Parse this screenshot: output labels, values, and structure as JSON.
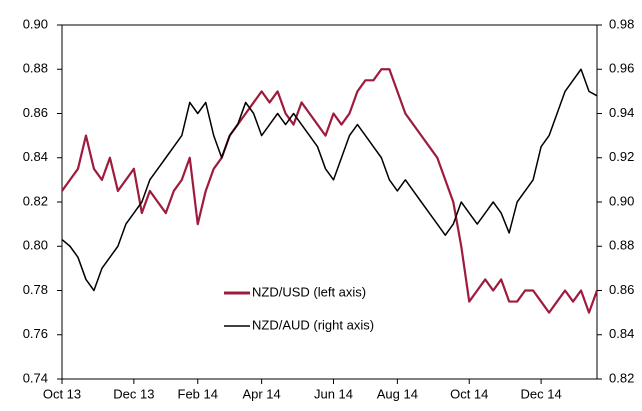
{
  "chart_data": {
    "type": "line",
    "categories": [
      "Oct 13",
      null,
      null,
      null,
      null,
      null,
      null,
      null,
      null,
      "Dec 13",
      null,
      null,
      null,
      null,
      null,
      null,
      null,
      "Feb 14",
      null,
      null,
      null,
      null,
      null,
      null,
      null,
      "Apr 14",
      null,
      null,
      null,
      null,
      null,
      null,
      null,
      null,
      "Jun 14",
      null,
      null,
      null,
      null,
      null,
      null,
      null,
      "Aug 14",
      null,
      null,
      null,
      null,
      null,
      null,
      null,
      null,
      "Oct 14",
      null,
      null,
      null,
      null,
      null,
      null,
      null,
      null,
      "Dec 14",
      null,
      null,
      null,
      null,
      null,
      null,
      null
    ],
    "series": [
      {
        "name": "NZD/USD (left axis)",
        "color": "#9e1b3c",
        "axis": "y",
        "values": [
          0.825,
          0.83,
          0.835,
          0.85,
          0.835,
          0.83,
          0.84,
          0.825,
          0.83,
          0.835,
          0.815,
          0.825,
          0.82,
          0.815,
          0.825,
          0.83,
          0.84,
          0.81,
          0.825,
          0.835,
          0.84,
          0.85,
          0.855,
          0.86,
          0.865,
          0.87,
          0.865,
          0.87,
          0.86,
          0.855,
          0.865,
          0.86,
          0.855,
          0.85,
          0.86,
          0.855,
          0.86,
          0.87,
          0.875,
          0.875,
          0.88,
          0.88,
          0.87,
          0.86,
          0.855,
          0.85,
          0.845,
          0.84,
          0.83,
          0.82,
          0.8,
          0.775,
          0.78,
          0.785,
          0.78,
          0.785,
          0.775,
          0.775,
          0.78,
          0.78,
          0.775,
          0.77,
          0.775,
          0.78,
          0.775,
          0.78,
          0.77,
          0.78
        ]
      },
      {
        "name": "NZD/AUD (right axis)",
        "color": "#000000",
        "axis": "y2",
        "values": [
          0.883,
          0.88,
          0.875,
          0.865,
          0.86,
          0.87,
          0.875,
          0.88,
          0.89,
          0.895,
          0.9,
          0.91,
          0.915,
          0.92,
          0.925,
          0.93,
          0.945,
          0.94,
          0.945,
          0.93,
          0.92,
          0.93,
          0.935,
          0.945,
          0.94,
          0.93,
          0.935,
          0.94,
          0.935,
          0.94,
          0.935,
          0.93,
          0.925,
          0.915,
          0.91,
          0.92,
          0.93,
          0.935,
          0.93,
          0.925,
          0.92,
          0.91,
          0.905,
          0.91,
          0.905,
          0.9,
          0.895,
          0.89,
          0.885,
          0.89,
          0.9,
          0.895,
          0.89,
          0.895,
          0.9,
          0.895,
          0.886,
          0.9,
          0.905,
          0.91,
          0.925,
          0.93,
          0.94,
          0.95,
          0.955,
          0.96,
          0.95,
          0.948
        ]
      }
    ],
    "ylim": [
      0.74,
      0.9
    ],
    "yticks": [
      {
        "value": 0.74,
        "label": "0.74"
      },
      {
        "value": 0.76,
        "label": "0.76"
      },
      {
        "value": 0.78,
        "label": "0.78"
      },
      {
        "value": 0.8,
        "label": "0.80"
      },
      {
        "value": 0.82,
        "label": "0.82"
      },
      {
        "value": 0.84,
        "label": "0.84"
      },
      {
        "value": 0.86,
        "label": "0.86"
      },
      {
        "value": 0.88,
        "label": "0.88"
      },
      {
        "value": 0.9,
        "label": "0.90"
      }
    ],
    "y2lim": [
      0.82,
      0.98
    ],
    "y2ticks": [
      {
        "value": 0.82,
        "label": "0.82"
      },
      {
        "value": 0.84,
        "label": "0.84"
      },
      {
        "value": 0.86,
        "label": "0.86"
      },
      {
        "value": 0.88,
        "label": "0.88"
      },
      {
        "value": 0.9,
        "label": "0.90"
      },
      {
        "value": 0.92,
        "label": "0.92"
      },
      {
        "value": 0.94,
        "label": "0.94"
      },
      {
        "value": 0.96,
        "label": "0.96"
      },
      {
        "value": 0.98,
        "label": "0.98"
      }
    ],
    "grid": false
  }
}
